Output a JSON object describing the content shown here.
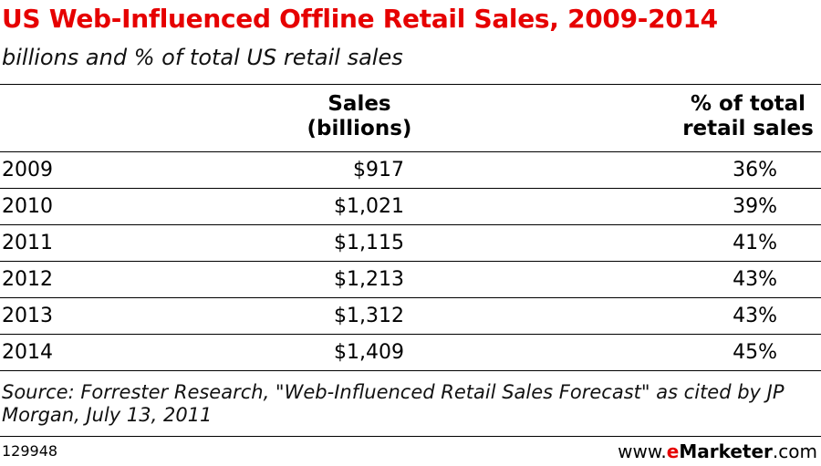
{
  "title": "US Web-Influenced Offline Retail Sales, 2009-2014",
  "subtitle": "billions and % of total US retail sales",
  "columns": {
    "sales_line1": "Sales",
    "sales_line2": "(billions)",
    "pct_line1": "% of total",
    "pct_line2": "retail sales"
  },
  "rows": [
    {
      "year": "2009",
      "sales": "$917",
      "pct": "36%"
    },
    {
      "year": "2010",
      "sales": "$1,021",
      "pct": "39%"
    },
    {
      "year": "2011",
      "sales": "$1,115",
      "pct": "41%"
    },
    {
      "year": "2012",
      "sales": "$1,213",
      "pct": "43%"
    },
    {
      "year": "2013",
      "sales": "$1,312",
      "pct": "43%"
    },
    {
      "year": "2014",
      "sales": "$1,409",
      "pct": "45%"
    }
  ],
  "source": "Source: Forrester Research, \"Web-Influenced Retail Sales Forecast\" as cited by JP Morgan, July 13, 2011",
  "footer": {
    "id": "129948",
    "brand_prefix": "www.",
    "brand_e": "e",
    "brand_name": "Marketer",
    "brand_suffix": ".com"
  },
  "colors": {
    "title": "#e60000",
    "brand_e": "#e60000"
  },
  "chart_data": {
    "type": "table",
    "title": "US Web-Influenced Offline Retail Sales, 2009-2014",
    "subtitle": "billions and % of total US retail sales",
    "columns": [
      "Sales (billions)",
      "% of total retail sales"
    ],
    "categories": [
      "2009",
      "2010",
      "2011",
      "2012",
      "2013",
      "2014"
    ],
    "series": [
      {
        "name": "Sales (billions)",
        "values": [
          917,
          1021,
          1115,
          1213,
          1312,
          1409
        ]
      },
      {
        "name": "% of total retail sales",
        "values": [
          36,
          39,
          41,
          43,
          43,
          45
        ]
      }
    ]
  }
}
